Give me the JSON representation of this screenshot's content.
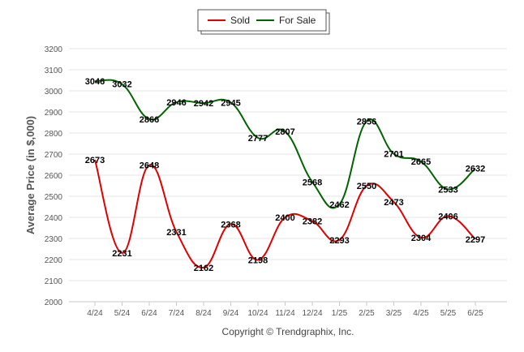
{
  "chart_data": {
    "type": "line",
    "categories": [
      "4/24",
      "5/24",
      "6/24",
      "7/24",
      "8/24",
      "9/24",
      "10/24",
      "11/24",
      "12/24",
      "1/25",
      "2/25",
      "3/25",
      "4/25",
      "5/25",
      "6/25"
    ],
    "series": [
      {
        "name": "Sold",
        "color": "#e00000",
        "values": [
          2673,
          2231,
          2648,
          2331,
          2162,
          2368,
          2198,
          2400,
          2382,
          2293,
          2550,
          2473,
          2304,
          2406,
          2297
        ]
      },
      {
        "name": "For Sale",
        "color": "#006400",
        "values": [
          3046,
          3032,
          2866,
          2946,
          2942,
          2945,
          2777,
          2807,
          2568,
          2462,
          2856,
          2701,
          2665,
          2533,
          2632
        ]
      }
    ],
    "ylabel": "Average Price (in $,000)",
    "xlabel": "",
    "ylim": [
      2000,
      3200
    ],
    "yticks": [
      2000,
      2100,
      2200,
      2300,
      2400,
      2500,
      2600,
      2700,
      2800,
      2900,
      3000,
      3100,
      3200
    ],
    "grid": true,
    "legend_position": "top-center",
    "credit": "Copyright © Trendgraphix, Inc."
  }
}
